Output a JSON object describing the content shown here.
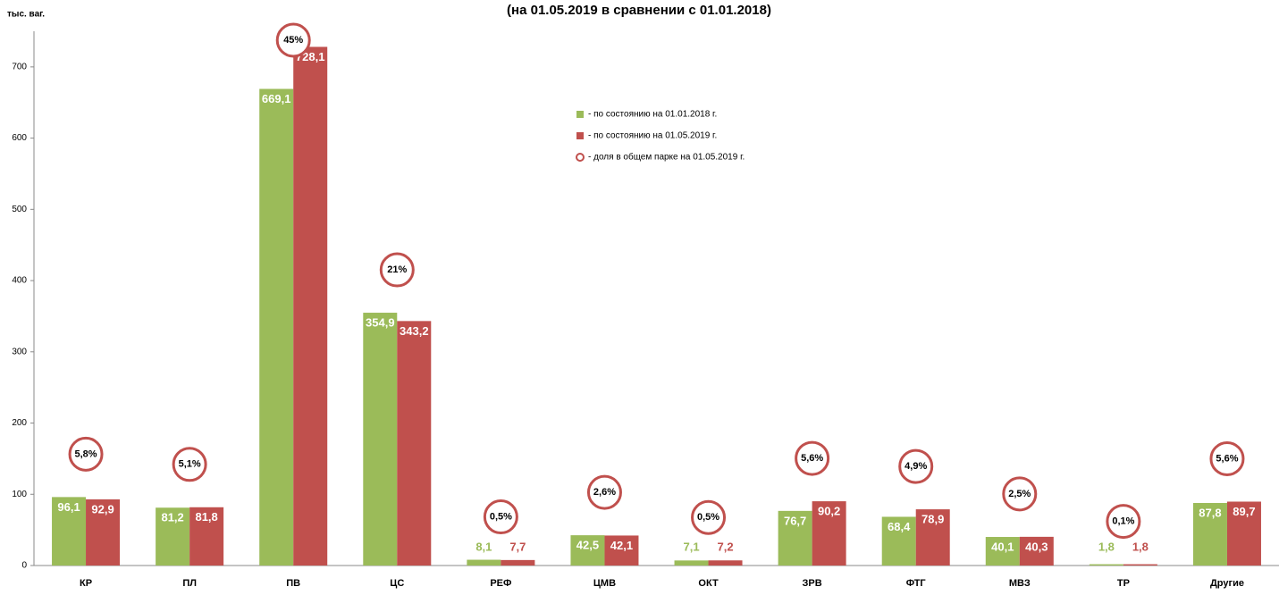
{
  "chart_data": {
    "type": "bar",
    "title": "(на 01.05.2019 в сравнении с 01.01.2018)",
    "y_axis_label": "тыс. ваг.",
    "categories": [
      "КР",
      "ПЛ",
      "ПВ",
      "ЦС",
      "РЕФ",
      "ЦМВ",
      "ОКТ",
      "ЗРВ",
      "ФТГ",
      "МВЗ",
      "ТР",
      "Другие"
    ],
    "series": [
      {
        "name": "- по состоянию на 01.01.2018 г.",
        "color": "#9bbb59",
        "values": [
          96.1,
          81.2,
          669.1,
          354.9,
          8.1,
          42.5,
          7.1,
          76.7,
          68.4,
          40.1,
          1.8,
          87.8
        ],
        "value_labels": [
          "96,1",
          "81,2",
          "669,1",
          "354,9",
          "8,1",
          "42,5",
          "7,1",
          "76,7",
          "68,4",
          "40,1",
          "1,8",
          "87,8"
        ]
      },
      {
        "name": "- по состоянию на 01.05.2019 г.",
        "color": "#c0504d",
        "values": [
          92.9,
          81.8,
          728.1,
          343.2,
          7.7,
          42.1,
          7.2,
          90.2,
          78.9,
          40.3,
          1.8,
          89.7
        ],
        "value_labels": [
          "92,9",
          "81,8",
          "728,1",
          "343,2",
          "7,7",
          "42,1",
          "7,2",
          "90,2",
          "78,9",
          "40,3",
          "1,8",
          "89,7"
        ]
      },
      {
        "name": "- доля в общем парке на 01.05.2019 г.",
        "color": "#c0504d",
        "marker": "circle",
        "values": [
          5.8,
          5.1,
          45,
          21,
          0.5,
          2.6,
          0.5,
          5.6,
          4.9,
          2.5,
          0.1,
          5.6
        ],
        "value_labels": [
          "5,8%",
          "5,1%",
          "45%",
          "21%",
          "0,5%",
          "2,6%",
          "0,5%",
          "5,6%",
          "4,9%",
          "2,5%",
          "0,1%",
          "5,6%"
        ]
      }
    ],
    "ylim": [
      0,
      750
    ],
    "yticks": [
      0,
      100,
      200,
      300,
      400,
      500,
      600,
      700
    ],
    "grid": false
  }
}
